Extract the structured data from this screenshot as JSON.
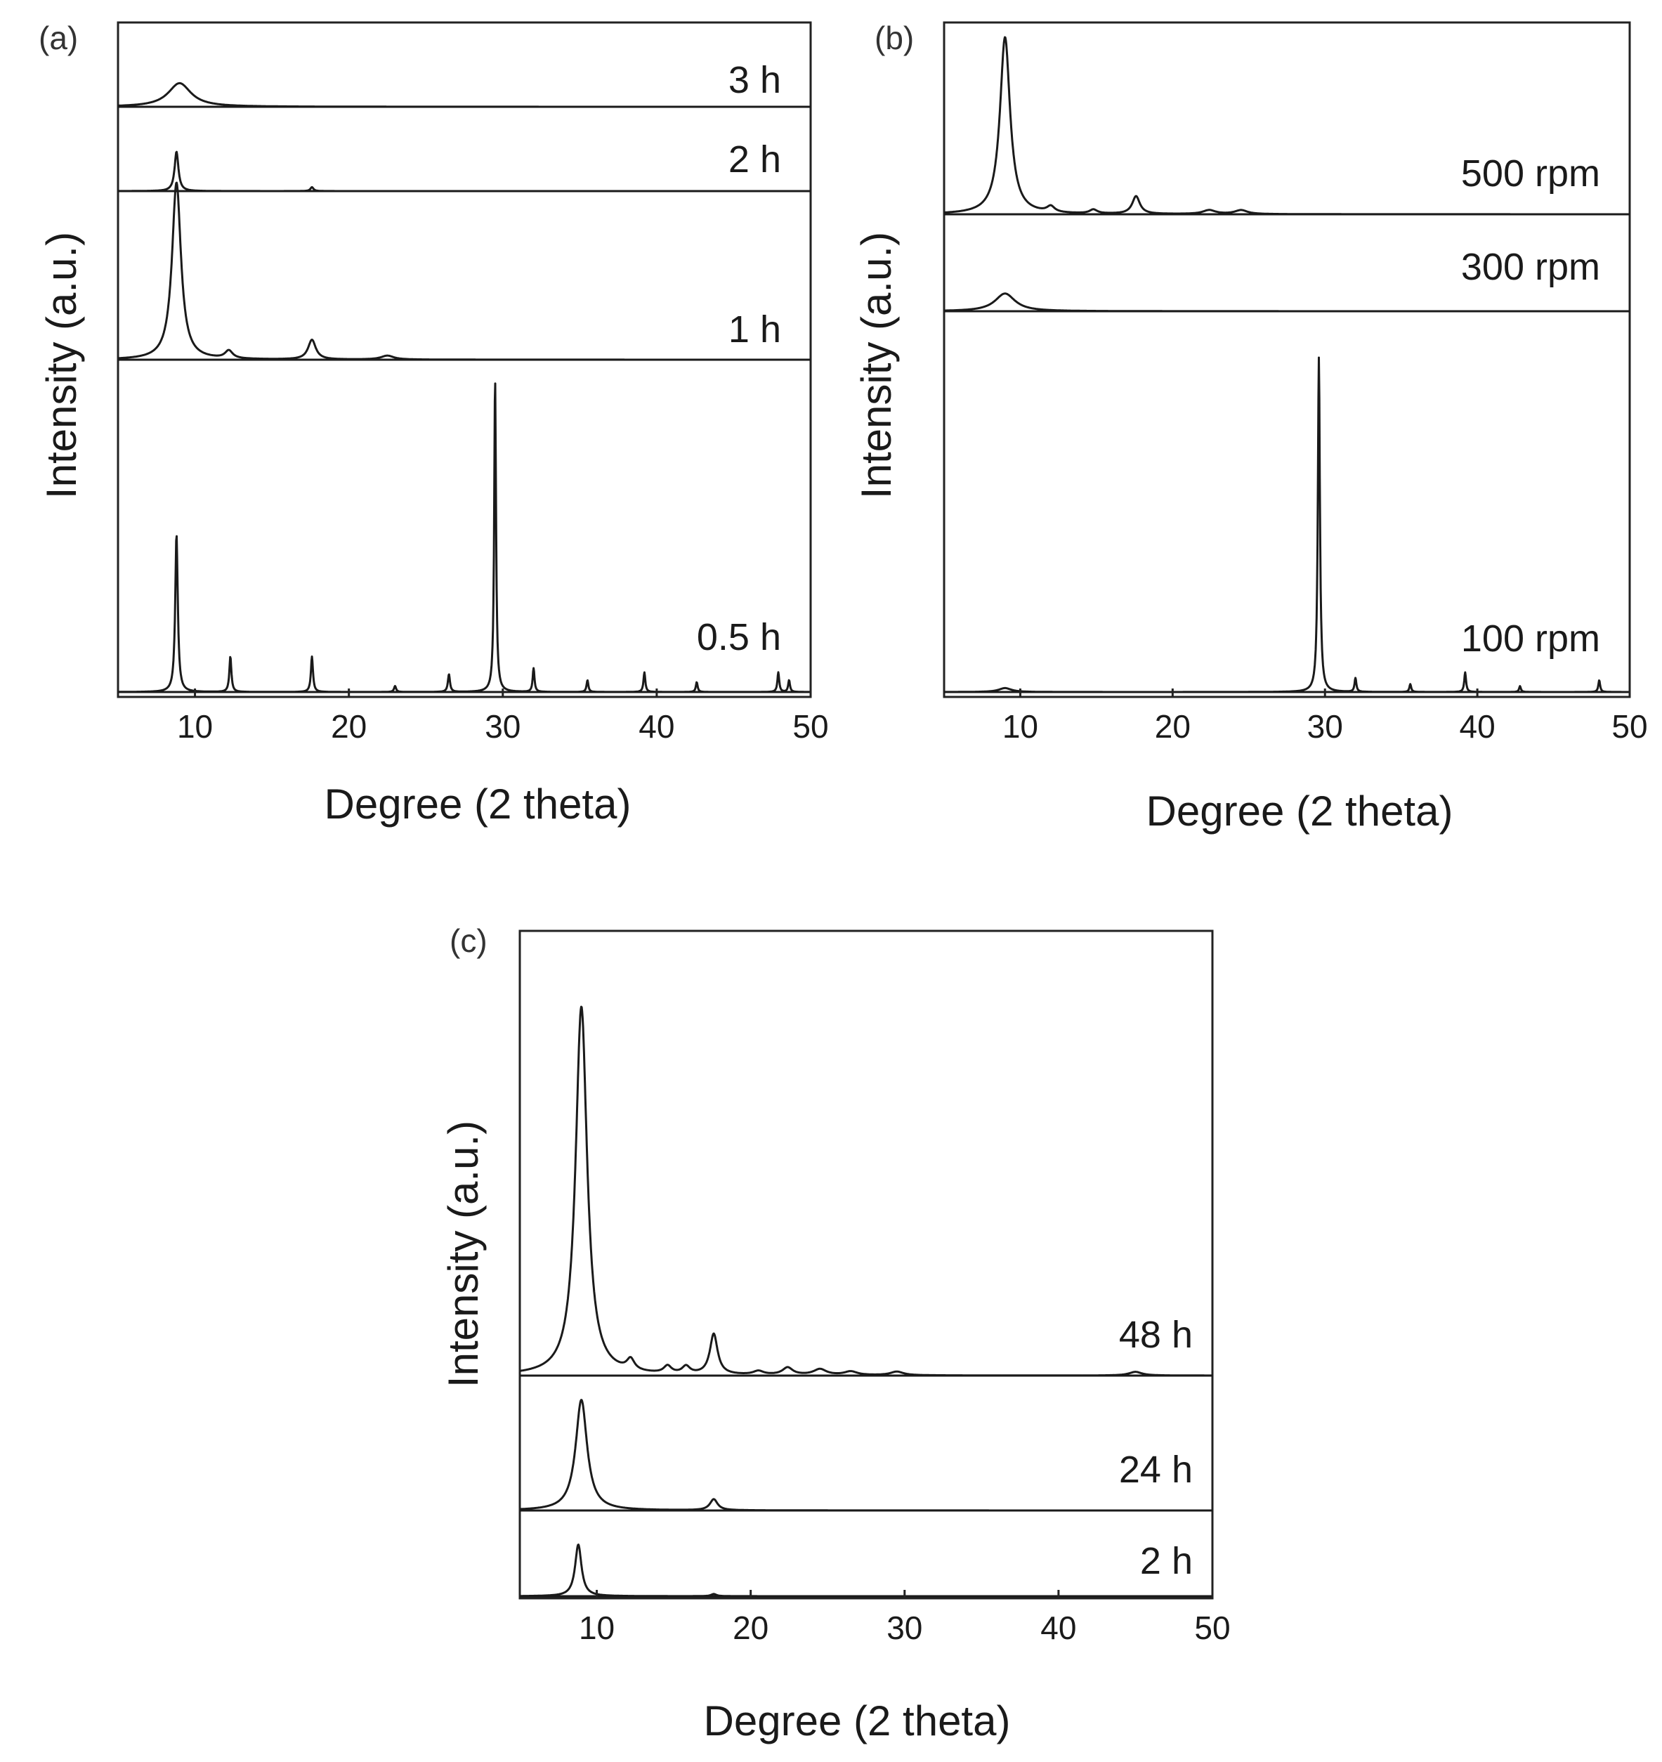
{
  "colors": {
    "trace": "#1a1a1a",
    "frame": "#222222",
    "background": "#ffffff"
  },
  "chart_data": [
    {
      "type": "line",
      "panel_label": "(a)",
      "xlabel": "Degree (2 theta)",
      "ylabel": "Intensity (a.u.)",
      "xlim": [
        5,
        50
      ],
      "xticks": [
        "10",
        "20",
        "30",
        "40",
        "50"
      ],
      "grid": false,
      "series": [
        {
          "name": "3 h",
          "peaks": [
            [
              9.0,
              0.6,
              0.9
            ]
          ]
        },
        {
          "name": "2 h",
          "peaks": [
            [
              8.8,
              1.0,
              0.15
            ],
            [
              17.6,
              0.1,
              0.12
            ]
          ]
        },
        {
          "name": "1 h",
          "peaks": [
            [
              8.8,
              4.5,
              0.35
            ],
            [
              12.2,
              0.2,
              0.3
            ],
            [
              17.6,
              0.5,
              0.3
            ],
            [
              22.5,
              0.1,
              0.5
            ]
          ]
        },
        {
          "name": "0.5 h",
          "peaks": [
            [
              8.8,
              4.0,
              0.1
            ],
            [
              12.3,
              0.9,
              0.08
            ],
            [
              17.6,
              0.9,
              0.08
            ],
            [
              23.0,
              0.15,
              0.08
            ],
            [
              26.5,
              0.45,
              0.08
            ],
            [
              29.5,
              8.0,
              0.07
            ],
            [
              32.0,
              0.6,
              0.07
            ],
            [
              35.5,
              0.3,
              0.07
            ],
            [
              39.2,
              0.5,
              0.07
            ],
            [
              42.6,
              0.25,
              0.07
            ],
            [
              47.9,
              0.5,
              0.07
            ],
            [
              48.6,
              0.3,
              0.07
            ]
          ]
        }
      ]
    },
    {
      "type": "line",
      "panel_label": "(b)",
      "xlabel": "Degree (2 theta)",
      "ylabel": "Intensity (a.u.)",
      "xlim": [
        5,
        50
      ],
      "xticks": [
        "10",
        "20",
        "30",
        "40",
        "50"
      ],
      "grid": false,
      "series": [
        {
          "name": "500 rpm",
          "peaks": [
            [
              9.0,
              4.5,
              0.4
            ],
            [
              12.0,
              0.15,
              0.3
            ],
            [
              14.8,
              0.1,
              0.3
            ],
            [
              17.6,
              0.45,
              0.3
            ],
            [
              22.4,
              0.1,
              0.5
            ],
            [
              24.5,
              0.1,
              0.5
            ]
          ]
        },
        {
          "name": "300 rpm",
          "peaks": [
            [
              9.0,
              0.45,
              0.8
            ]
          ]
        },
        {
          "name": "100 rpm",
          "peaks": [
            [
              9.0,
              0.1,
              0.5
            ],
            [
              29.6,
              8.5,
              0.08
            ],
            [
              32.0,
              0.35,
              0.07
            ],
            [
              35.6,
              0.2,
              0.07
            ],
            [
              39.2,
              0.5,
              0.07
            ],
            [
              42.8,
              0.15,
              0.07
            ],
            [
              48.0,
              0.3,
              0.07
            ]
          ]
        }
      ]
    },
    {
      "type": "line",
      "panel_label": "(c)",
      "xlabel": "Degree (2 theta)",
      "ylabel": "Intensity (a.u.)",
      "xlim": [
        5,
        50
      ],
      "xticks": [
        "10",
        "20",
        "30",
        "40",
        "50"
      ],
      "grid": false,
      "series": [
        {
          "name": "48 h",
          "peaks": [
            [
              9.0,
              5.0,
              0.45
            ],
            [
              12.2,
              0.15,
              0.3
            ],
            [
              14.6,
              0.1,
              0.3
            ],
            [
              15.8,
              0.1,
              0.3
            ],
            [
              17.6,
              0.55,
              0.3
            ],
            [
              20.5,
              0.05,
              0.4
            ],
            [
              22.4,
              0.1,
              0.4
            ],
            [
              24.5,
              0.08,
              0.5
            ],
            [
              26.5,
              0.05,
              0.5
            ],
            [
              29.5,
              0.05,
              0.5
            ],
            [
              45.0,
              0.05,
              0.5
            ]
          ]
        },
        {
          "name": "24 h",
          "peaks": [
            [
              9.0,
              1.5,
              0.45
            ],
            [
              17.6,
              0.15,
              0.3
            ]
          ]
        },
        {
          "name": "2 h",
          "peaks": [
            [
              8.8,
              0.7,
              0.25
            ],
            [
              17.6,
              0.03,
              0.2
            ]
          ]
        }
      ]
    }
  ]
}
